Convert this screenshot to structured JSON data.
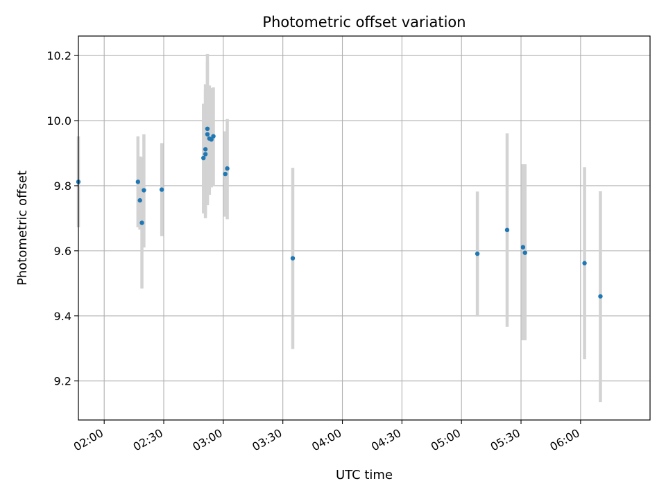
{
  "chart_data": {
    "type": "scatter",
    "title": "Photometric offset variation",
    "xlabel": "UTC time",
    "ylabel": "Photometric offset",
    "x_unit": "UTC time (HH:MM)",
    "xlim": [
      "01:47",
      "06:35"
    ],
    "ylim": [
      9.08,
      10.26
    ],
    "grid": true,
    "x_ticks": [
      "02:00",
      "02:30",
      "03:00",
      "03:30",
      "04:00",
      "04:30",
      "05:00",
      "05:30",
      "06:00"
    ],
    "y_ticks": [
      9.2,
      9.4,
      9.6,
      9.8,
      10.0,
      10.2
    ],
    "y_tick_labels": [
      "9.2",
      "9.4",
      "9.6",
      "9.8",
      "10.0",
      "10.2"
    ],
    "marker_color": "#1f77b4",
    "errorbar_color": "#d3d3d3",
    "points": [
      {
        "t": "01:47",
        "y": 9.812,
        "lo": 9.672,
        "hi": 9.952
      },
      {
        "t": "02:17",
        "y": 9.812,
        "lo": 9.672,
        "hi": 9.952
      },
      {
        "t": "02:18",
        "y": 9.755,
        "lo": 9.665,
        "hi": 9.89
      },
      {
        "t": "02:19",
        "y": 9.686,
        "lo": 9.484,
        "hi": 9.888
      },
      {
        "t": "02:20",
        "y": 9.786,
        "lo": 9.61,
        "hi": 9.958
      },
      {
        "t": "02:29",
        "y": 9.788,
        "lo": 9.645,
        "hi": 9.931
      },
      {
        "t": "02:50",
        "y": 9.885,
        "lo": 9.715,
        "hi": 10.052
      },
      {
        "t": "02:51",
        "y": 9.897,
        "lo": 9.7,
        "hi": 10.095
      },
      {
        "t": "02:51",
        "y": 9.912,
        "lo": 9.712,
        "hi": 10.112
      },
      {
        "t": "02:52",
        "y": 9.975,
        "lo": 9.745,
        "hi": 10.205
      },
      {
        "t": "02:52",
        "y": 9.958,
        "lo": 9.74,
        "hi": 10.18
      },
      {
        "t": "02:53",
        "y": 9.945,
        "lo": 9.772,
        "hi": 10.108
      },
      {
        "t": "02:54",
        "y": 9.942,
        "lo": 9.795,
        "hi": 10.1
      },
      {
        "t": "02:55",
        "y": 9.952,
        "lo": 9.8,
        "hi": 10.102
      },
      {
        "t": "03:01",
        "y": 9.836,
        "lo": 9.705,
        "hi": 9.967
      },
      {
        "t": "03:02",
        "y": 9.853,
        "lo": 9.697,
        "hi": 10.005
      },
      {
        "t": "03:35",
        "y": 9.577,
        "lo": 9.298,
        "hi": 9.855
      },
      {
        "t": "05:08",
        "y": 9.591,
        "lo": 9.398,
        "hi": 9.782
      },
      {
        "t": "05:23",
        "y": 9.664,
        "lo": 9.366,
        "hi": 9.961
      },
      {
        "t": "05:31",
        "y": 9.611,
        "lo": 9.325,
        "hi": 9.866
      },
      {
        "t": "05:32",
        "y": 9.594,
        "lo": 9.325,
        "hi": 9.866
      },
      {
        "t": "06:02",
        "y": 9.562,
        "lo": 9.267,
        "hi": 9.857
      },
      {
        "t": "06:10",
        "y": 9.46,
        "lo": 9.135,
        "hi": 9.783
      }
    ]
  }
}
